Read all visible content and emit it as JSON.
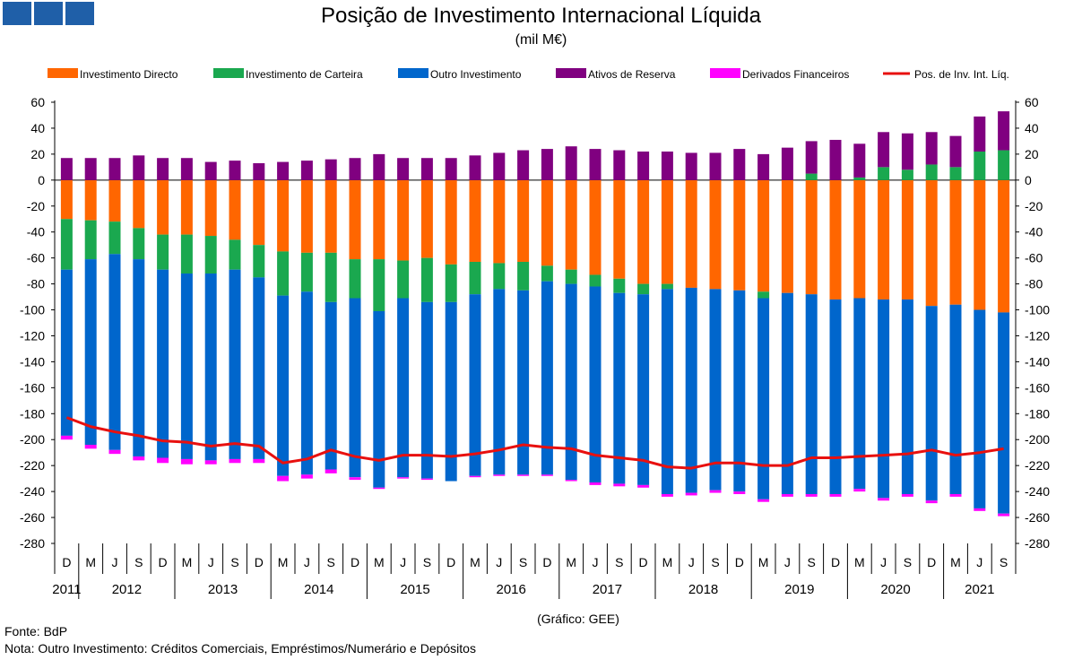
{
  "header": {
    "title": "Posição de Investimento Internacional Líquida",
    "subtitle": "(mil M€)"
  },
  "footer": {
    "credit": "(Gráfico: GEE)",
    "source": "Fonte: BdP",
    "note": "Nota: Outro Investimento: Créditos Comerciais, Empréstimos/Numerário e Depósitos"
  },
  "chart_data": {
    "type": "bar",
    "stacked": true,
    "title": "Posição de Investimento Internacional Líquida",
    "ylabel": "mil M€",
    "ylim": [
      -280,
      60
    ],
    "yticks": [
      60,
      40,
      20,
      0,
      -20,
      -40,
      -60,
      -80,
      -100,
      -120,
      -140,
      -160,
      -180,
      -200,
      -220,
      -240,
      -260,
      -280
    ],
    "legend_position": "top",
    "categories": [
      "D",
      "M",
      "J",
      "S",
      "D",
      "M",
      "J",
      "S",
      "D",
      "M",
      "J",
      "S",
      "D",
      "M",
      "J",
      "S",
      "D",
      "M",
      "J",
      "S",
      "D",
      "M",
      "J",
      "S",
      "D",
      "M",
      "J",
      "S",
      "D",
      "M",
      "J",
      "S",
      "D",
      "M",
      "J",
      "S",
      "D",
      "M",
      "J",
      "S"
    ],
    "years": [
      {
        "label": "2011",
        "start": 0,
        "end": 0
      },
      {
        "label": "2012",
        "start": 1,
        "end": 4
      },
      {
        "label": "2013",
        "start": 5,
        "end": 8
      },
      {
        "label": "2014",
        "start": 9,
        "end": 12
      },
      {
        "label": "2015",
        "start": 13,
        "end": 16
      },
      {
        "label": "2016",
        "start": 17,
        "end": 20
      },
      {
        "label": "2017",
        "start": 21,
        "end": 24
      },
      {
        "label": "2018",
        "start": 25,
        "end": 28
      },
      {
        "label": "2019",
        "start": 29,
        "end": 32
      },
      {
        "label": "2020",
        "start": 33,
        "end": 36
      },
      {
        "label": "2021",
        "start": 37,
        "end": 39
      }
    ],
    "series": [
      {
        "name": "Investimento Directo",
        "color": "#ff6600",
        "kind": "bar",
        "values": [
          -30,
          -31,
          -32,
          -37,
          -42,
          -42,
          -43,
          -46,
          -50,
          -55,
          -56,
          -56,
          -61,
          -61,
          -62,
          -60,
          -65,
          -63,
          -64,
          -63,
          -66,
          -69,
          -73,
          -76,
          -80,
          -80,
          -83,
          -84,
          -85,
          -86,
          -87,
          -88,
          -92,
          -91,
          -92,
          -92,
          -97,
          -96,
          -100,
          -102
        ]
      },
      {
        "name": "Investimento de Carteira",
        "color": "#1aa84f",
        "kind": "bar",
        "values": [
          -39,
          -30,
          -25,
          -24,
          -27,
          -30,
          -29,
          -23,
          -25,
          -34,
          -30,
          -38,
          -30,
          -40,
          -29,
          -34,
          -29,
          -25,
          -20,
          -22,
          -12,
          -11,
          -9,
          -11,
          -8,
          -4,
          0,
          0,
          0,
          -5,
          0,
          5,
          0,
          2,
          10,
          8,
          12,
          10,
          22,
          23
        ]
      },
      {
        "name": "Outro Investimento",
        "color": "#0066cc",
        "kind": "bar",
        "values": [
          -128,
          -143,
          -151,
          -152,
          -145,
          -143,
          -144,
          -146,
          -140,
          -139,
          -141,
          -129,
          -138,
          -136,
          -138,
          -136,
          -138,
          -140,
          -143,
          -142,
          -149,
          -151,
          -151,
          -147,
          -147,
          -158,
          -158,
          -155,
          -155,
          -155,
          -155,
          -154,
          -150,
          -147,
          -153,
          -150,
          -150,
          -146,
          -153,
          -155
        ]
      },
      {
        "name": "Ativos de Reserva",
        "color": "#800080",
        "kind": "bar",
        "values": [
          17,
          17,
          17,
          19,
          17,
          17,
          14,
          15,
          13,
          14,
          15,
          16,
          17,
          20,
          17,
          17,
          17,
          19,
          21,
          23,
          24,
          26,
          24,
          23,
          22,
          22,
          21,
          21,
          24,
          20,
          25,
          25,
          31,
          26,
          27,
          28,
          25,
          24,
          27,
          30
        ]
      },
      {
        "name": "Derivados Financeiros",
        "color": "#ff00ff",
        "kind": "bar",
        "values": [
          -3,
          -3,
          -3,
          -3,
          -4,
          -4,
          -3,
          -3,
          -3,
          -4,
          -3,
          -3,
          -2,
          -1,
          -1,
          -1,
          0,
          -1,
          -1,
          -1,
          -1,
          -1,
          -2,
          -2,
          -2,
          -2,
          -2,
          -2,
          -2,
          -2,
          -2,
          -2,
          -2,
          -2,
          -2,
          -2,
          -2,
          -2,
          -2,
          -2
        ]
      },
      {
        "name": "Pos. de Inv. Int. Líq.",
        "color": "#e8100f",
        "kind": "line",
        "values": [
          -183,
          -190,
          -194,
          -197,
          -201,
          -202,
          -205,
          -203,
          -205,
          -218,
          -215,
          -208,
          -213,
          -216,
          -212,
          -212,
          -213,
          -211,
          -208,
          -204,
          -206,
          -207,
          -212,
          -214,
          -216,
          -221,
          -222,
          -218,
          -218,
          -220,
          -220,
          -214,
          -214,
          -213,
          -212,
          -211,
          -208,
          -212,
          -210,
          -207
        ]
      }
    ]
  }
}
